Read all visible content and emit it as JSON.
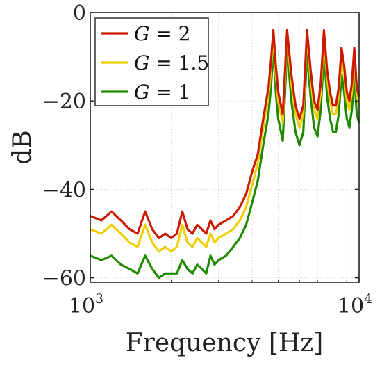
{
  "chart_data": {
    "type": "line",
    "title": "",
    "xlabel": "Frequency [Hz]",
    "ylabel": "dB",
    "x_scale": "log",
    "xlim": [
      1000,
      10000
    ],
    "ylim": [
      -61,
      0
    ],
    "x_ticks": [
      {
        "value": 1000,
        "base": "10",
        "exp": "3"
      },
      {
        "value": 10000,
        "base": "10",
        "exp": "4"
      }
    ],
    "y_ticks": [
      {
        "value": 0,
        "label": "0"
      },
      {
        "value": -20,
        "label": "−20"
      },
      {
        "value": -40,
        "label": "−40"
      },
      {
        "value": -60,
        "label": "−60"
      }
    ],
    "grid": true,
    "legend_position": "top-left",
    "series": [
      {
        "name": "G = 2",
        "legend_var": "G",
        "legend_rest": " = 2",
        "color": "#cc1a00",
        "x": [
          1000,
          1100,
          1200,
          1300,
          1400,
          1500,
          1600,
          1700,
          1800,
          1900,
          2000,
          2100,
          2200,
          2300,
          2400,
          2500,
          2600,
          2700,
          2800,
          2900,
          3000,
          3200,
          3400,
          3600,
          3800,
          4000,
          4200,
          4400,
          4600,
          4700,
          4800,
          4900,
          5000,
          5200,
          5400,
          5600,
          5800,
          6000,
          6200,
          6400,
          6600,
          6800,
          7000,
          7200,
          7400,
          7600,
          7800,
          8000,
          8200,
          8400,
          8600,
          8800,
          9000,
          9200,
          9400,
          9600,
          9800,
          10000
        ],
        "y": [
          -46,
          -47,
          -45,
          -47,
          -49,
          -50,
          -45,
          -49,
          -51,
          -50,
          -51,
          -50,
          -45,
          -49,
          -50,
          -48,
          -49,
          -50,
          -47,
          -49,
          -48,
          -47,
          -46,
          -44,
          -41,
          -36,
          -32,
          -24,
          -17,
          -11,
          -4,
          -12,
          -18,
          -23,
          -4,
          -14,
          -21,
          -24,
          -21,
          -4,
          -13,
          -20,
          -22,
          -16,
          -4,
          -13,
          -18,
          -21,
          -21,
          -17,
          -8,
          -12,
          -18,
          -20,
          -16,
          -8,
          -17,
          -19
        ]
      },
      {
        "name": "G = 1.5",
        "legend_var": "G",
        "legend_rest": " = 1.5",
        "color": "#f2cd00",
        "x": [
          1000,
          1100,
          1200,
          1300,
          1400,
          1500,
          1600,
          1700,
          1800,
          1900,
          2000,
          2100,
          2200,
          2300,
          2400,
          2500,
          2600,
          2700,
          2800,
          2900,
          3000,
          3200,
          3400,
          3600,
          3800,
          4000,
          4200,
          4400,
          4600,
          4700,
          4800,
          4900,
          5000,
          5200,
          5400,
          5600,
          5800,
          6000,
          6200,
          6400,
          6600,
          6800,
          7000,
          7200,
          7400,
          7600,
          7800,
          8000,
          8200,
          8400,
          8600,
          8800,
          9000,
          9200,
          9400,
          9600,
          9800,
          10000
        ],
        "y": [
          -49,
          -50,
          -48,
          -50,
          -52,
          -53,
          -48,
          -52,
          -54,
          -53,
          -54,
          -53,
          -48,
          -52,
          -53,
          -51,
          -52,
          -53,
          -50,
          -52,
          -51,
          -50,
          -49,
          -47,
          -44,
          -39,
          -34,
          -26,
          -19,
          -13,
          -5,
          -14,
          -20,
          -25,
          -5,
          -16,
          -23,
          -26,
          -23,
          -5,
          -15,
          -22,
          -24,
          -18,
          -5,
          -15,
          -20,
          -23,
          -23,
          -19,
          -10,
          -14,
          -20,
          -22,
          -18,
          -10,
          -19,
          -21
        ]
      },
      {
        "name": "G = 1",
        "legend_var": "G",
        "legend_rest": " = 1",
        "color": "#1f8a00",
        "x": [
          1000,
          1100,
          1200,
          1300,
          1400,
          1500,
          1600,
          1700,
          1800,
          1900,
          2000,
          2100,
          2200,
          2300,
          2400,
          2500,
          2600,
          2700,
          2800,
          2900,
          3000,
          3200,
          3400,
          3600,
          3800,
          4000,
          4200,
          4400,
          4600,
          4700,
          4800,
          4900,
          5000,
          5200,
          5400,
          5600,
          5800,
          6000,
          6200,
          6400,
          6600,
          6800,
          7000,
          7200,
          7400,
          7600,
          7800,
          8000,
          8200,
          8400,
          8600,
          8800,
          9000,
          9200,
          9400,
          9600,
          9800,
          10000
        ],
        "y": [
          -55,
          -56,
          -55,
          -57,
          -58,
          -59,
          -55,
          -58,
          -60,
          -59,
          -59,
          -59,
          -56,
          -58,
          -59,
          -57,
          -58,
          -59,
          -55,
          -57,
          -56,
          -55,
          -53,
          -51,
          -48,
          -43,
          -38,
          -30,
          -23,
          -17,
          -8,
          -18,
          -24,
          -29,
          -8,
          -20,
          -27,
          -30,
          -27,
          -9,
          -19,
          -26,
          -28,
          -22,
          -9,
          -19,
          -24,
          -27,
          -27,
          -23,
          -14,
          -18,
          -24,
          -26,
          -22,
          -14,
          -23,
          -25
        ]
      }
    ]
  }
}
